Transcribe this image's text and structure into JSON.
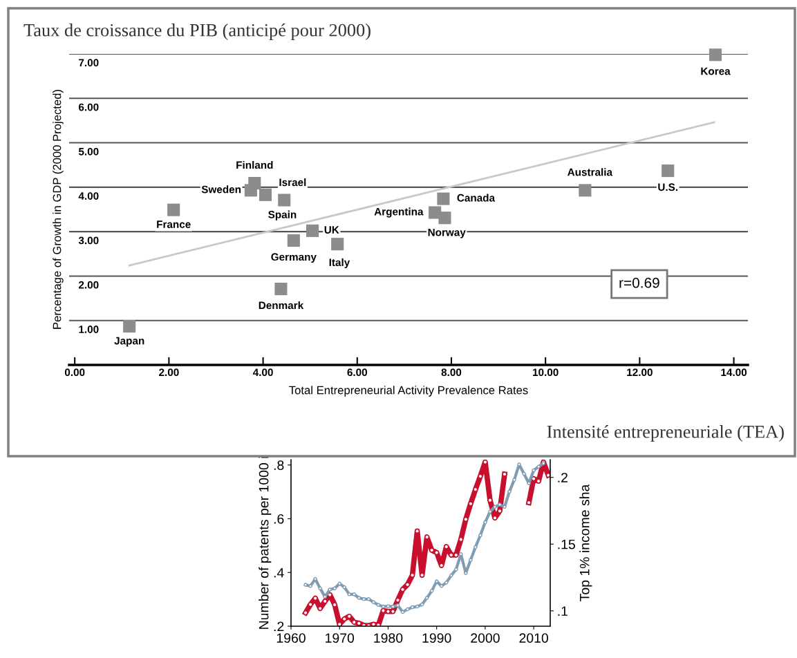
{
  "chart_data": [
    {
      "type": "scatter",
      "title": "Taux de croissance du PIB (anticipé pour 2000)",
      "xlabel": "Total Entrepreneurial Activity Prevalence Rates",
      "ylabel": "Percentage of Growth in GDP (2000 Projected)",
      "xlim": [
        -0.12,
        14.3
      ],
      "ylim": [
        0,
        7
      ],
      "xticks": [
        {
          "value": 0,
          "label": "0.00"
        },
        {
          "value": 2,
          "label": "2.00"
        },
        {
          "value": 4,
          "label": "4.00"
        },
        {
          "value": 6,
          "label": "6.00"
        },
        {
          "value": 8,
          "label": "8.00"
        },
        {
          "value": 10,
          "label": "10.00"
        },
        {
          "value": 12,
          "label": "12.00"
        },
        {
          "value": 14,
          "label": "14.00"
        }
      ],
      "yticks": [
        {
          "value": 1,
          "label": "1.00"
        },
        {
          "value": 2,
          "label": "2.00"
        },
        {
          "value": 3,
          "label": "3.00"
        },
        {
          "value": 4,
          "label": "4.00"
        },
        {
          "value": 5,
          "label": "5.00"
        },
        {
          "value": 6,
          "label": "6.00"
        },
        {
          "value": 7,
          "label": "7.00"
        }
      ],
      "grid": "y",
      "marker": "square",
      "series": [
        {
          "type": "scatter",
          "color": "#8c8c8c",
          "x": [
            1.16,
            2.1,
            3.74,
            3.82,
            4.05,
            4.45,
            4.65,
            5.05,
            5.58,
            4.38,
            7.65,
            7.83,
            7.86,
            10.84,
            12.6,
            13.61
          ],
          "values": [
            0.87,
            3.49,
            3.93,
            4.09,
            3.83,
            3.71,
            2.8,
            3.02,
            2.72,
            1.71,
            3.43,
            3.74,
            3.31,
            3.93,
            4.37,
            6.98
          ]
        },
        {
          "type": "line",
          "color": "#c8c8c8",
          "marker": "none",
          "x": [
            1.16,
            13.58
          ],
          "values": [
            2.24,
            5.46
          ]
        }
      ],
      "annotations": [
        {
          "text": "Japan",
          "x": 1.16,
          "y": 0.87
        },
        {
          "text": "France",
          "x": 2.1,
          "y": 3.49
        },
        {
          "text": "Sweden",
          "x": 3.74,
          "y": 3.93
        },
        {
          "text": "Finland",
          "x": 3.82,
          "y": 4.09
        },
        {
          "text": "Israel",
          "x": 4.05,
          "y": 3.83
        },
        {
          "text": "Spain",
          "x": 4.45,
          "y": 3.71
        },
        {
          "text": "Germany",
          "x": 4.65,
          "y": 2.8
        },
        {
          "text": "UK",
          "x": 5.05,
          "y": 3.02
        },
        {
          "text": "Italy",
          "x": 5.58,
          "y": 2.72
        },
        {
          "text": "Denmark",
          "x": 4.38,
          "y": 1.71
        },
        {
          "text": "Argentina",
          "x": 7.65,
          "y": 3.43
        },
        {
          "text": "Canada",
          "x": 7.83,
          "y": 3.74
        },
        {
          "text": "Norway",
          "x": 7.86,
          "y": 3.31
        },
        {
          "text": "Australia",
          "x": 10.84,
          "y": 3.93
        },
        {
          "text": "U.S.",
          "x": 12.6,
          "y": 4.37
        },
        {
          "text": "Korea",
          "x": 13.61,
          "y": 6.98
        },
        "r=0.69",
        "Intensité entrepreneuriale (TEA)"
      ]
    },
    {
      "type": "line",
      "ylabel": "Number of patents per 1000 i",
      "y2label": "Top 1% income sha",
      "marker": "circle",
      "grid": false,
      "xlim": [
        1960,
        2013.4
      ],
      "ylim": [
        0.2,
        0.82
      ],
      "y2lim": [
        0.0885,
        0.2133
      ],
      "xticks": [
        1960,
        1970,
        1980,
        1990,
        2000,
        2010
      ],
      "yticks": [
        {
          "value": 0.2,
          "label": ".2"
        },
        {
          "value": 0.4,
          "label": ".4"
        },
        {
          "value": 0.6,
          "label": ".6"
        },
        {
          "value": 0.8,
          "label": ".8"
        }
      ],
      "y2ticks": [
        {
          "value": 0.1,
          "label": ".1"
        },
        {
          "value": 0.15,
          "label": ".15"
        },
        {
          "value": 0.2,
          "label": ".2"
        }
      ],
      "x": [
        1963,
        1964,
        1965,
        1966,
        1967,
        1968,
        1969,
        1970,
        1971,
        1972,
        1973,
        1974,
        1975,
        1976,
        1977,
        1978,
        1979,
        1980,
        1981,
        1982,
        1983,
        1984,
        1985,
        1986,
        1987,
        1988,
        1989,
        1990,
        1991,
        1992,
        1993,
        1994,
        1995,
        1996,
        1997,
        1998,
        1999,
        2000,
        2001,
        2002,
        2003,
        2004,
        2005,
        2006,
        2007,
        2008,
        2009,
        2010,
        2011,
        2012,
        2013
      ],
      "series": [
        {
          "color": "#c8102e",
          "values": [
            0.25,
            0.281,
            0.304,
            0.266,
            0.293,
            0.317,
            0.28,
            0.207,
            0.227,
            0.237,
            0.215,
            0.211,
            0.203,
            0.202,
            0.207,
            0.204,
            0.258,
            0.255,
            0.255,
            0.297,
            0.337,
            0.355,
            0.39,
            0.554,
            0.39,
            0.532,
            0.483,
            0.474,
            0.426,
            0.496,
            0.465,
            0.465,
            0.523,
            0.598,
            0.656,
            0.709,
            0.758,
            0.811,
            0.669,
            0.603,
            0.629,
            0.766,
            null,
            null,
            null,
            null,
            0.66,
            0.749,
            0.74,
            0.811,
            0.762
          ]
        },
        {
          "color": "#7f9cb3",
          "axis": "y2",
          "values": [
            0.1195,
            0.1186,
            0.1239,
            0.1168,
            0.1106,
            0.1159,
            0.1168,
            0.1204,
            0.1177,
            0.1124,
            0.1124,
            0.1097,
            0.1088,
            0.1088,
            0.1065,
            0.1044,
            0.1032,
            0.1035,
            0.1032,
            0.1041,
            0.0991,
            0.1012,
            0.1027,
            0.1032,
            0.1048,
            0.1097,
            0.115,
            0.1221,
            0.1186,
            0.1212,
            0.1265,
            0.131,
            0.1425,
            0.1283,
            0.1381,
            0.1478,
            0.1566,
            0.1664,
            0.1743,
            0.1779,
            0.1796,
            0.1779,
            0.1894,
            0.1982,
            0.2097,
            0.2027,
            0.1956,
            0.2053,
            0.208,
            0.2106,
            null
          ]
        }
      ]
    }
  ]
}
